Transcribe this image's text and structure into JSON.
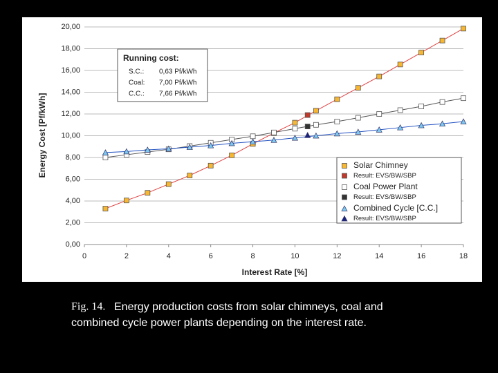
{
  "chart_data": {
    "type": "line",
    "xlabel": "Interest Rate  [%]",
    "ylabel": "Energy Cost [Pf/kWh]",
    "xlim": [
      0,
      18
    ],
    "xticks": [
      0,
      2,
      4,
      6,
      8,
      10,
      12,
      14,
      16,
      18
    ],
    "ylim": [
      0,
      20
    ],
    "yticks": [
      {
        "value": 0,
        "label": "0,00"
      },
      {
        "value": 2,
        "label": "2,00"
      },
      {
        "value": 4,
        "label": "4,00"
      },
      {
        "value": 6,
        "label": "6,00"
      },
      {
        "value": 8,
        "label": "8,00"
      },
      {
        "value": 10,
        "label": "10,00"
      },
      {
        "value": 12,
        "label": "12,00"
      },
      {
        "value": 14,
        "label": "14,00"
      },
      {
        "value": 16,
        "label": "16,00"
      },
      {
        "value": 18,
        "label": "18,00"
      },
      {
        "value": 20,
        "label": "20,00"
      }
    ],
    "grid": true,
    "legend": "lower right",
    "series": [
      {
        "name": "Solar Chimney",
        "marker": "square",
        "color": "#f7b733",
        "line_color": "#e04040",
        "x": [
          1,
          2,
          3,
          4,
          5,
          6,
          7,
          8,
          9,
          10,
          11,
          12,
          13,
          14,
          15,
          16,
          17,
          18
        ],
        "values": [
          3.3,
          4.05,
          4.75,
          5.55,
          6.35,
          7.25,
          8.2,
          9.25,
          10.25,
          11.2,
          12.3,
          13.35,
          14.4,
          15.45,
          16.55,
          17.65,
          18.75,
          19.85
        ]
      },
      {
        "name": "Result: EVS/BW/SBP",
        "marker": "square",
        "color": "#c0392b",
        "x": [
          10.6
        ],
        "values": [
          11.9
        ]
      },
      {
        "name": "Coal Power Plant",
        "marker": "square",
        "color": "#ffffff",
        "line_color": "#555555",
        "x": [
          1,
          2,
          3,
          4,
          5,
          6,
          7,
          8,
          9,
          10,
          11,
          12,
          13,
          14,
          15,
          16,
          17,
          18
        ],
        "values": [
          8.0,
          8.25,
          8.5,
          8.75,
          9.05,
          9.35,
          9.65,
          9.95,
          10.3,
          10.65,
          11.0,
          11.3,
          11.65,
          12.0,
          12.35,
          12.7,
          13.1,
          13.45
        ]
      },
      {
        "name": "Result: EVS/BW/SBP",
        "marker": "square",
        "color": "#333333",
        "x": [
          10.6
        ],
        "values": [
          10.85
        ]
      },
      {
        "name": "Combined Cycle [C.C.]",
        "marker": "triangle",
        "color": "#7ec8f0",
        "line_color": "#2050c0",
        "x": [
          1,
          2,
          3,
          4,
          5,
          6,
          7,
          8,
          9,
          10,
          11,
          12,
          13,
          14,
          15,
          16,
          17,
          18
        ],
        "values": [
          8.45,
          8.55,
          8.7,
          8.8,
          8.95,
          9.1,
          9.3,
          9.45,
          9.6,
          9.8,
          10.0,
          10.2,
          10.35,
          10.55,
          10.75,
          10.95,
          11.1,
          11.3
        ]
      },
      {
        "name": "Result: EVS/BW/SBP",
        "marker": "triangle",
        "color": "#1a237e",
        "x": [
          10.6
        ],
        "values": [
          10.05
        ]
      }
    ],
    "running_cost": {
      "title": "Running cost:",
      "rows": [
        [
          "S.C.:",
          "0,63 Pf/kWh"
        ],
        [
          "Coal:",
          "7,00 Pf/kWh"
        ],
        [
          "C.C.:",
          "7,66 Pf/kWh"
        ]
      ]
    },
    "caption": {
      "label": "Fig. 14.",
      "lines": [
        "Energy production costs from solar chimneys, coal and",
        "combined cycle power plants depending on the interest rate."
      ]
    }
  }
}
